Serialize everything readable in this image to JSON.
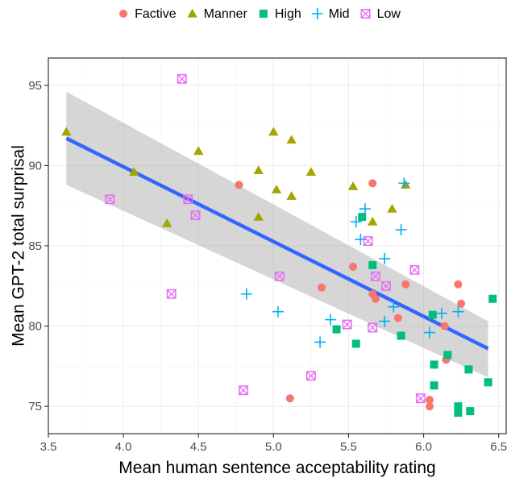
{
  "chart_data": {
    "type": "scatter",
    "title": "",
    "xlabel": "Mean human sentence acceptability rating",
    "ylabel": "Mean GPT-2 total surprisal",
    "xlim": [
      3.5,
      6.55
    ],
    "ylim": [
      73.3,
      96.7
    ],
    "x_ticks": [
      3.5,
      4.0,
      4.5,
      5.0,
      5.5,
      6.0,
      6.5
    ],
    "x_tick_labels": [
      "3.5",
      "4.0",
      "4.5",
      "5.0",
      "5.5",
      "6.0",
      "6.5"
    ],
    "y_ticks": [
      75,
      80,
      85,
      90,
      95
    ],
    "y_tick_labels": [
      "75",
      "80",
      "85",
      "90",
      "95"
    ],
    "grid": true,
    "legend_position": "top",
    "series": [
      {
        "name": "Factive",
        "shape": "circle",
        "color": "#F8766D",
        "points": [
          [
            4.77,
            88.8
          ],
          [
            5.66,
            88.9
          ],
          [
            5.53,
            83.7
          ],
          [
            5.32,
            82.4
          ],
          [
            5.66,
            82.0
          ],
          [
            5.68,
            81.7
          ],
          [
            5.88,
            82.6
          ],
          [
            6.23,
            82.6
          ],
          [
            6.25,
            81.4
          ],
          [
            5.83,
            80.5
          ],
          [
            6.14,
            80.0
          ],
          [
            6.15,
            77.9
          ],
          [
            5.11,
            75.5
          ],
          [
            6.04,
            75.4
          ],
          [
            6.04,
            75.0
          ]
        ]
      },
      {
        "name": "Manner",
        "shape": "triangle",
        "color": "#A3A500",
        "points": [
          [
            3.62,
            92.1
          ],
          [
            4.07,
            89.6
          ],
          [
            4.29,
            86.4
          ],
          [
            4.5,
            90.9
          ],
          [
            4.9,
            89.7
          ],
          [
            4.9,
            86.8
          ],
          [
            5.0,
            92.1
          ],
          [
            5.02,
            88.5
          ],
          [
            5.12,
            91.6
          ],
          [
            5.12,
            88.1
          ],
          [
            5.25,
            89.6
          ],
          [
            5.53,
            88.7
          ],
          [
            5.66,
            86.5
          ],
          [
            5.79,
            87.3
          ],
          [
            5.88,
            88.8
          ]
        ]
      },
      {
        "name": "High",
        "shape": "square",
        "color": "#00BF7D",
        "points": [
          [
            5.59,
            86.8
          ],
          [
            5.66,
            83.8
          ],
          [
            5.42,
            79.8
          ],
          [
            5.55,
            78.9
          ],
          [
            5.85,
            79.4
          ],
          [
            6.06,
            80.7
          ],
          [
            6.07,
            77.6
          ],
          [
            6.07,
            76.3
          ],
          [
            6.16,
            78.2
          ],
          [
            6.23,
            75.0
          ],
          [
            6.23,
            74.6
          ],
          [
            6.3,
            77.3
          ],
          [
            6.31,
            74.7
          ],
          [
            6.43,
            76.5
          ],
          [
            6.46,
            81.7
          ]
        ]
      },
      {
        "name": "Mid",
        "shape": "plus",
        "color": "#00B0F6",
        "points": [
          [
            4.82,
            82.0
          ],
          [
            5.03,
            80.9
          ],
          [
            5.31,
            79.0
          ],
          [
            5.38,
            80.4
          ],
          [
            5.55,
            86.5
          ],
          [
            5.58,
            85.4
          ],
          [
            5.61,
            87.3
          ],
          [
            5.74,
            84.2
          ],
          [
            5.74,
            80.3
          ],
          [
            5.8,
            81.2
          ],
          [
            5.85,
            86.0
          ],
          [
            5.87,
            88.9
          ],
          [
            6.04,
            79.6
          ],
          [
            6.12,
            80.8
          ],
          [
            6.23,
            80.9
          ]
        ]
      },
      {
        "name": "Low",
        "shape": "boxx",
        "color": "#E76BF3",
        "points": [
          [
            3.91,
            87.9
          ],
          [
            4.32,
            82.0
          ],
          [
            4.39,
            95.4
          ],
          [
            4.43,
            87.9
          ],
          [
            4.48,
            86.9
          ],
          [
            4.8,
            76.0
          ],
          [
            5.04,
            83.1
          ],
          [
            5.25,
            76.9
          ],
          [
            5.49,
            80.1
          ],
          [
            5.63,
            85.3
          ],
          [
            5.66,
            79.9
          ],
          [
            5.68,
            83.1
          ],
          [
            5.75,
            82.5
          ],
          [
            5.94,
            83.5
          ],
          [
            5.98,
            75.5
          ]
        ]
      }
    ],
    "regression": {
      "color": "#3366FF",
      "band_color": "#999999",
      "x": [
        3.62,
        6.43
      ],
      "y": [
        91.7,
        78.6
      ],
      "band_lower": [
        88.8,
        76.8
      ],
      "band_upper": [
        94.6,
        80.3
      ]
    }
  }
}
